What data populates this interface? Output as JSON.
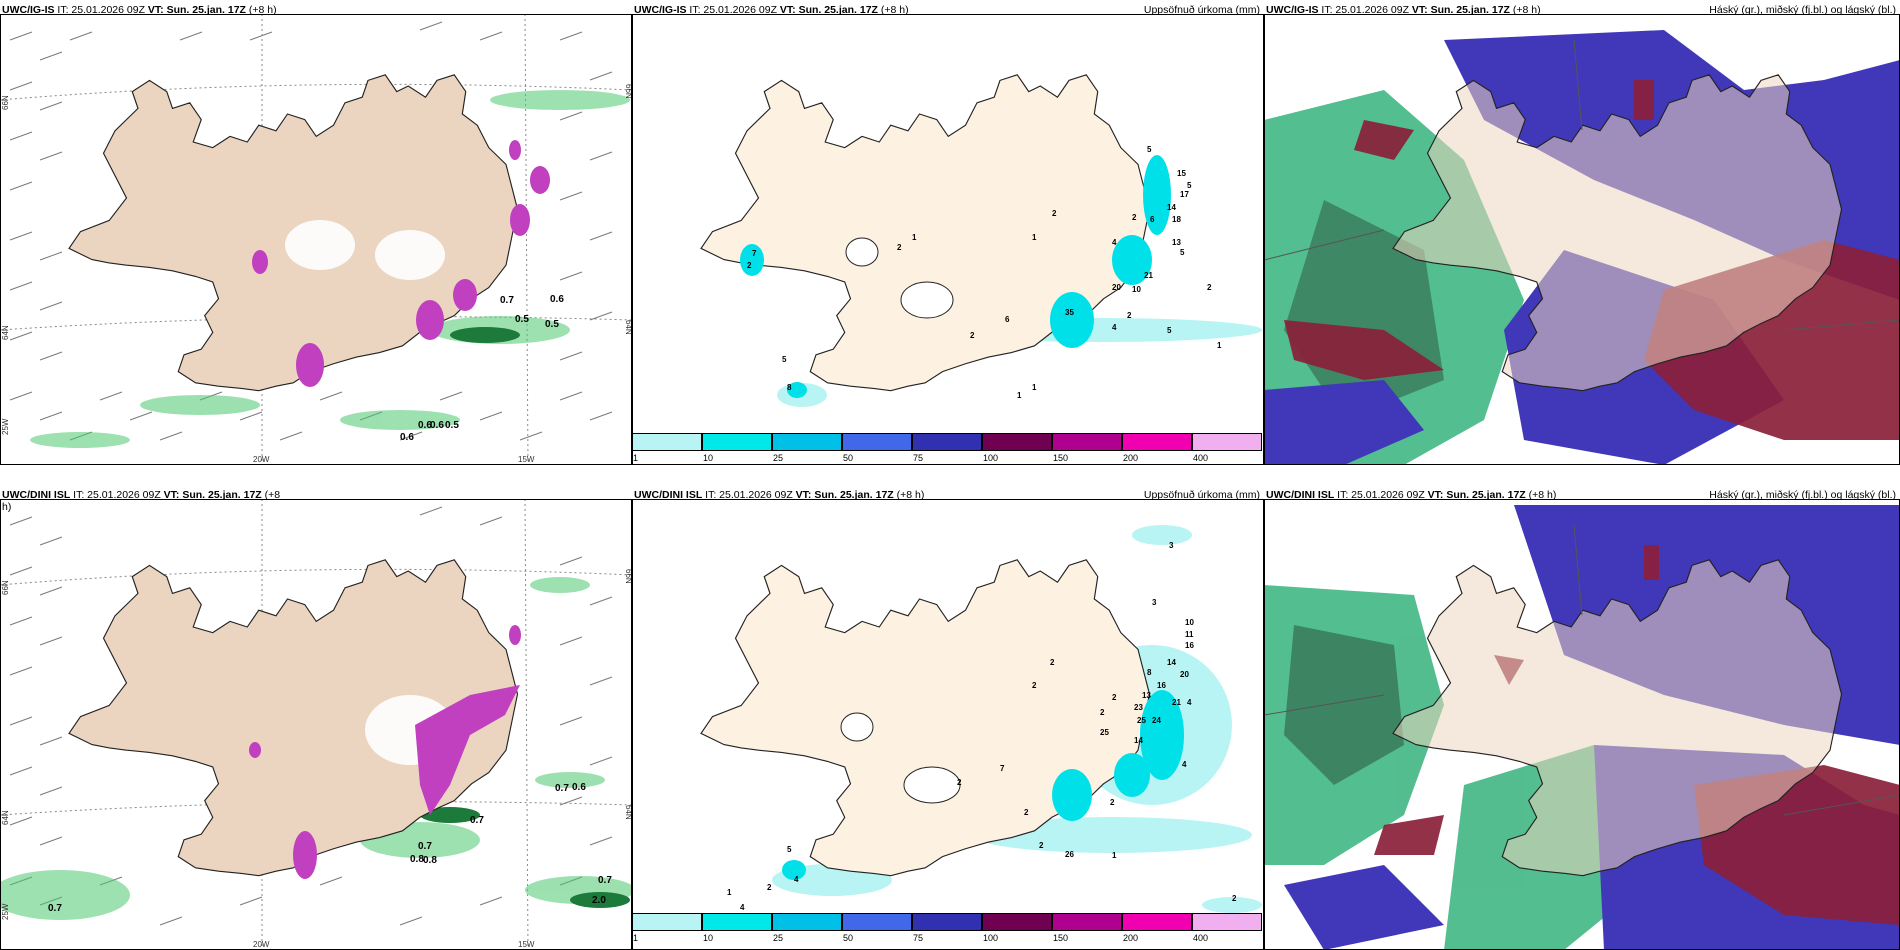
{
  "panels": {
    "p1": {
      "model": "UWC/IG-IS",
      "it_label": "IT: 25.01.2026 09Z",
      "vt_label": "VT: Sun. 25.jan. 17Z",
      "lead": "(+8 h)"
    },
    "p2": {
      "model": "UWC/IG-IS",
      "it_label": "IT: 25.01.2026 09Z",
      "vt_label": "VT: Sun. 25.jan. 17Z",
      "lead": "(+8 h)",
      "title_right": "Uppsöfnuð úrkoma (mm)"
    },
    "p3": {
      "model": "UWC/IG-IS",
      "it_label": "IT: 25.01.2026 09Z",
      "vt_label": "VT: Sun. 25.jan. 17Z",
      "lead": "(+8 h)",
      "title_right": "Háský (gr.), miðský (fj.bl.) og lágský (bl.)"
    },
    "p4": {
      "model": "UWC/DINI ISL",
      "it_label": "IT: 25.01.2026 09Z",
      "vt_label": "VT: Sun. 25.jan. 17Z",
      "lead": "(+8",
      "lead2": "h)"
    },
    "p5": {
      "model": "UWC/DINI ISL",
      "it_label": "IT: 25.01.2026 09Z",
      "vt_label": "VT: Sun. 25.jan. 17Z",
      "lead": "(+8 h)",
      "title_right": "Uppsöfnuð úrkoma (mm)"
    },
    "p6": {
      "model": "UWC/DINI ISL",
      "it_label": "IT: 25.01.2026 09Z",
      "vt_label": "VT: Sun. 25.jan. 17Z",
      "lead": "(+8 h)",
      "title_right": "Háský (gr.), miðský (fj.bl.) og lágský (bl.)"
    }
  },
  "grid_labels": {
    "lat_top": "66N",
    "lat_mid": "64N",
    "lon_left": "25W",
    "lon_20": "20W",
    "lon_15": "15W",
    "lat_right_top": "66N",
    "lat_right_mid": "64N"
  },
  "colorbar": {
    "labels": [
      "1",
      "10",
      "25",
      "50",
      "75",
      "100",
      "150",
      "200",
      "400"
    ],
    "colors": [
      "#b8f4f4",
      "#00e8e8",
      "#00c0e8",
      "#4068e8",
      "#3030b0",
      "#700050",
      "#b00090",
      "#f000b0",
      "#f0b0f0"
    ]
  },
  "p1_values": [
    "0.6",
    "0.5",
    "0.7",
    "0.5",
    "0.6",
    "0.6",
    "0.6",
    "0.5"
  ],
  "p2_values": [
    "5",
    "15",
    "5",
    "17",
    "14",
    "18",
    "2",
    "2",
    "6",
    "1",
    "4",
    "13",
    "5",
    "21",
    "10",
    "2",
    "20",
    "2",
    "35",
    "6",
    "2",
    "4",
    "1",
    "5",
    "2",
    "1",
    "1",
    "5",
    "8",
    "7",
    "2",
    "1"
  ],
  "p4_values": [
    "0.7",
    "0.6",
    "0.7",
    "0.7",
    "0.8",
    "0.8",
    "0.7",
    "0.7",
    "2.0"
  ],
  "p5_values": [
    "3",
    "3",
    "10",
    "11",
    "16",
    "14",
    "20",
    "2",
    "8",
    "2",
    "2",
    "13",
    "16",
    "21",
    "23",
    "4",
    "2",
    "25",
    "24",
    "14",
    "25",
    "4",
    "7",
    "2",
    "2",
    "2",
    "1",
    "2",
    "26",
    "5",
    "4",
    "2",
    "1",
    "4",
    "2"
  ],
  "colors": {
    "land": "#fdf1e2",
    "land_p1": "#ecd5c0",
    "cyan_light": "#b8f4f4",
    "cyan": "#00e0e8",
    "green": "#4cc870",
    "magenta": "#c040c0",
    "blue": "#4038b8",
    "maroon": "#8a1f3a"
  }
}
